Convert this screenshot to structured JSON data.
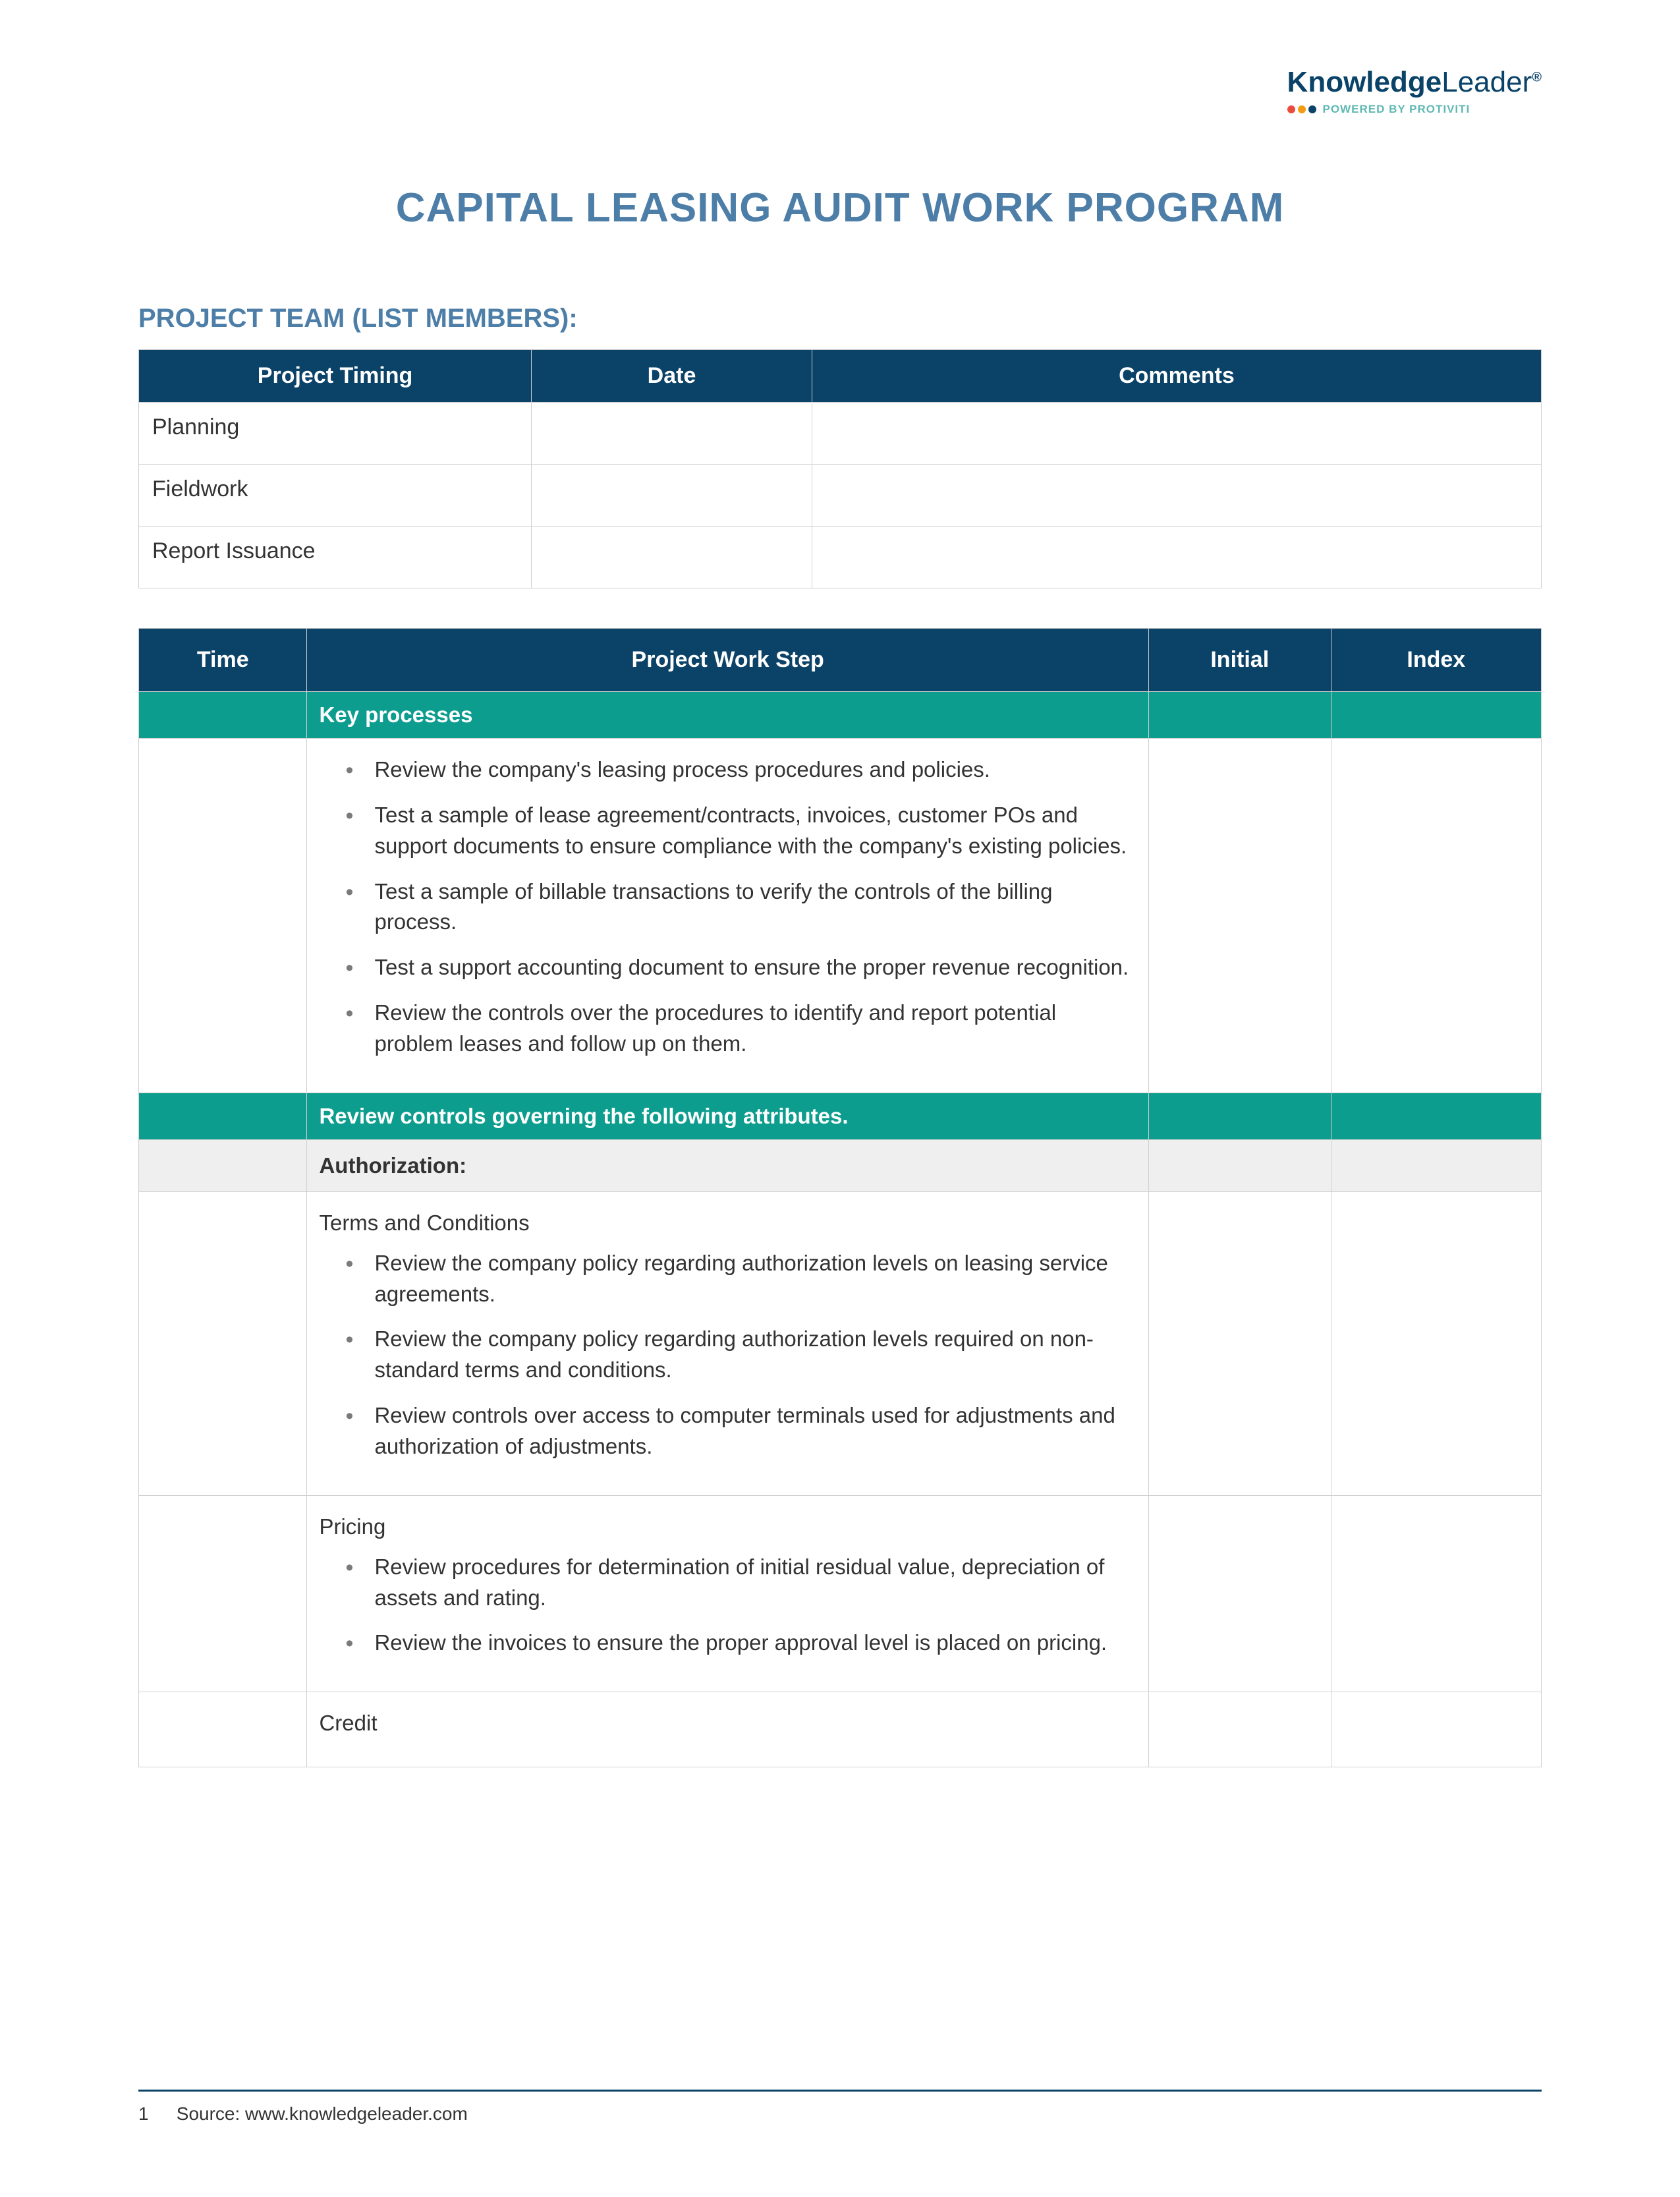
{
  "brand": {
    "name_bold": "Knowledge",
    "name_light": "Leader",
    "trademark": "®",
    "powered": "POWERED BY PROTIVITI",
    "dot_colors": [
      "#e74c3c",
      "#f39c12",
      "#0b4268"
    ]
  },
  "title": "CAPITAL LEASING AUDIT WORK PROGRAM",
  "section_heading": "PROJECT TEAM (LIST MEMBERS):",
  "timing_table": {
    "headers": [
      "Project Timing",
      "Date",
      "Comments"
    ],
    "rows": [
      [
        "Planning",
        "",
        ""
      ],
      [
        "Fieldwork",
        "",
        ""
      ],
      [
        "Report Issuance",
        "",
        ""
      ]
    ]
  },
  "work_table": {
    "headers": [
      "Time",
      "Project Work Step",
      "Initial",
      "Index"
    ],
    "rows": [
      {
        "type": "section",
        "label": "Key processes"
      },
      {
        "type": "bullets",
        "items": [
          "Review the company's leasing process procedures and policies.",
          "Test a sample of lease agreement/contracts, invoices, customer POs and support documents to ensure compliance with the company's existing policies.",
          "Test a sample of billable transactions to verify the controls of the billing process.",
          "Test a support accounting document to ensure the      proper revenue recognition.",
          "Review the controls over the procedures to identify and report potential problem leases and follow up on them."
        ]
      },
      {
        "type": "section",
        "label": "Review controls governing the following attributes."
      },
      {
        "type": "gray",
        "label": "Authorization:"
      },
      {
        "type": "lead_bullets",
        "lead": "Terms and Conditions",
        "items": [
          "Review the company policy regarding authorization levels on leasing service agreements.",
          "Review the company policy regarding authorization levels required on non-standard terms and conditions.",
          "Review controls over access to computer terminals used for adjustments and authorization of adjustments."
        ]
      },
      {
        "type": "lead_bullets",
        "lead": "Pricing",
        "items": [
          "Review procedures for determination of initial residual value, depreciation of assets and rating.",
          "Review the invoices to ensure the proper approval level is placed on pricing."
        ]
      },
      {
        "type": "lead_bullets",
        "lead": "Credit",
        "items": []
      }
    ]
  },
  "footer": {
    "page": "1",
    "source": "Source: www.knowledgeleader.com"
  },
  "colors": {
    "header_blue": "#0b4268",
    "teal": "#0d9d8f",
    "title_blue": "#4d7ea8",
    "gray_bg": "#efefef"
  }
}
